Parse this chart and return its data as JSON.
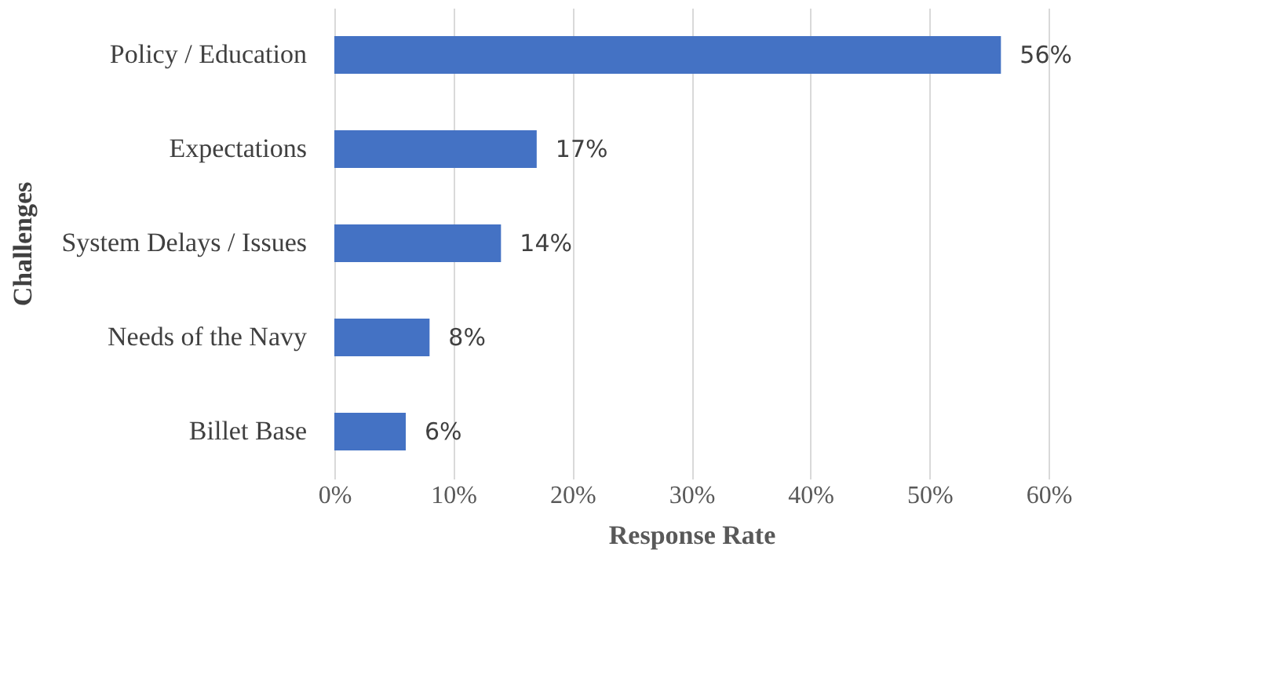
{
  "chart_data": {
    "type": "bar",
    "orientation": "horizontal",
    "xlabel": "Response Rate",
    "ylabel": "Challenges",
    "categories": [
      "Policy / Education",
      "Expectations",
      "System Delays / Issues",
      "Needs of the Navy",
      "Billet Base"
    ],
    "values": [
      56,
      17,
      14,
      8,
      6
    ],
    "value_labels": [
      "56%",
      "17%",
      "14%",
      "8%",
      "6%"
    ],
    "color": "#4472c4",
    "xlim": [
      0,
      60
    ],
    "xticks": [
      {
        "value": 0,
        "label": "0%"
      },
      {
        "value": 10,
        "label": "10%"
      },
      {
        "value": 20,
        "label": "20%"
      },
      {
        "value": 30,
        "label": "30%"
      },
      {
        "value": 40,
        "label": "40%"
      },
      {
        "value": 50,
        "label": "50%"
      },
      {
        "value": 60,
        "label": "60%"
      }
    ],
    "grid": "x"
  }
}
